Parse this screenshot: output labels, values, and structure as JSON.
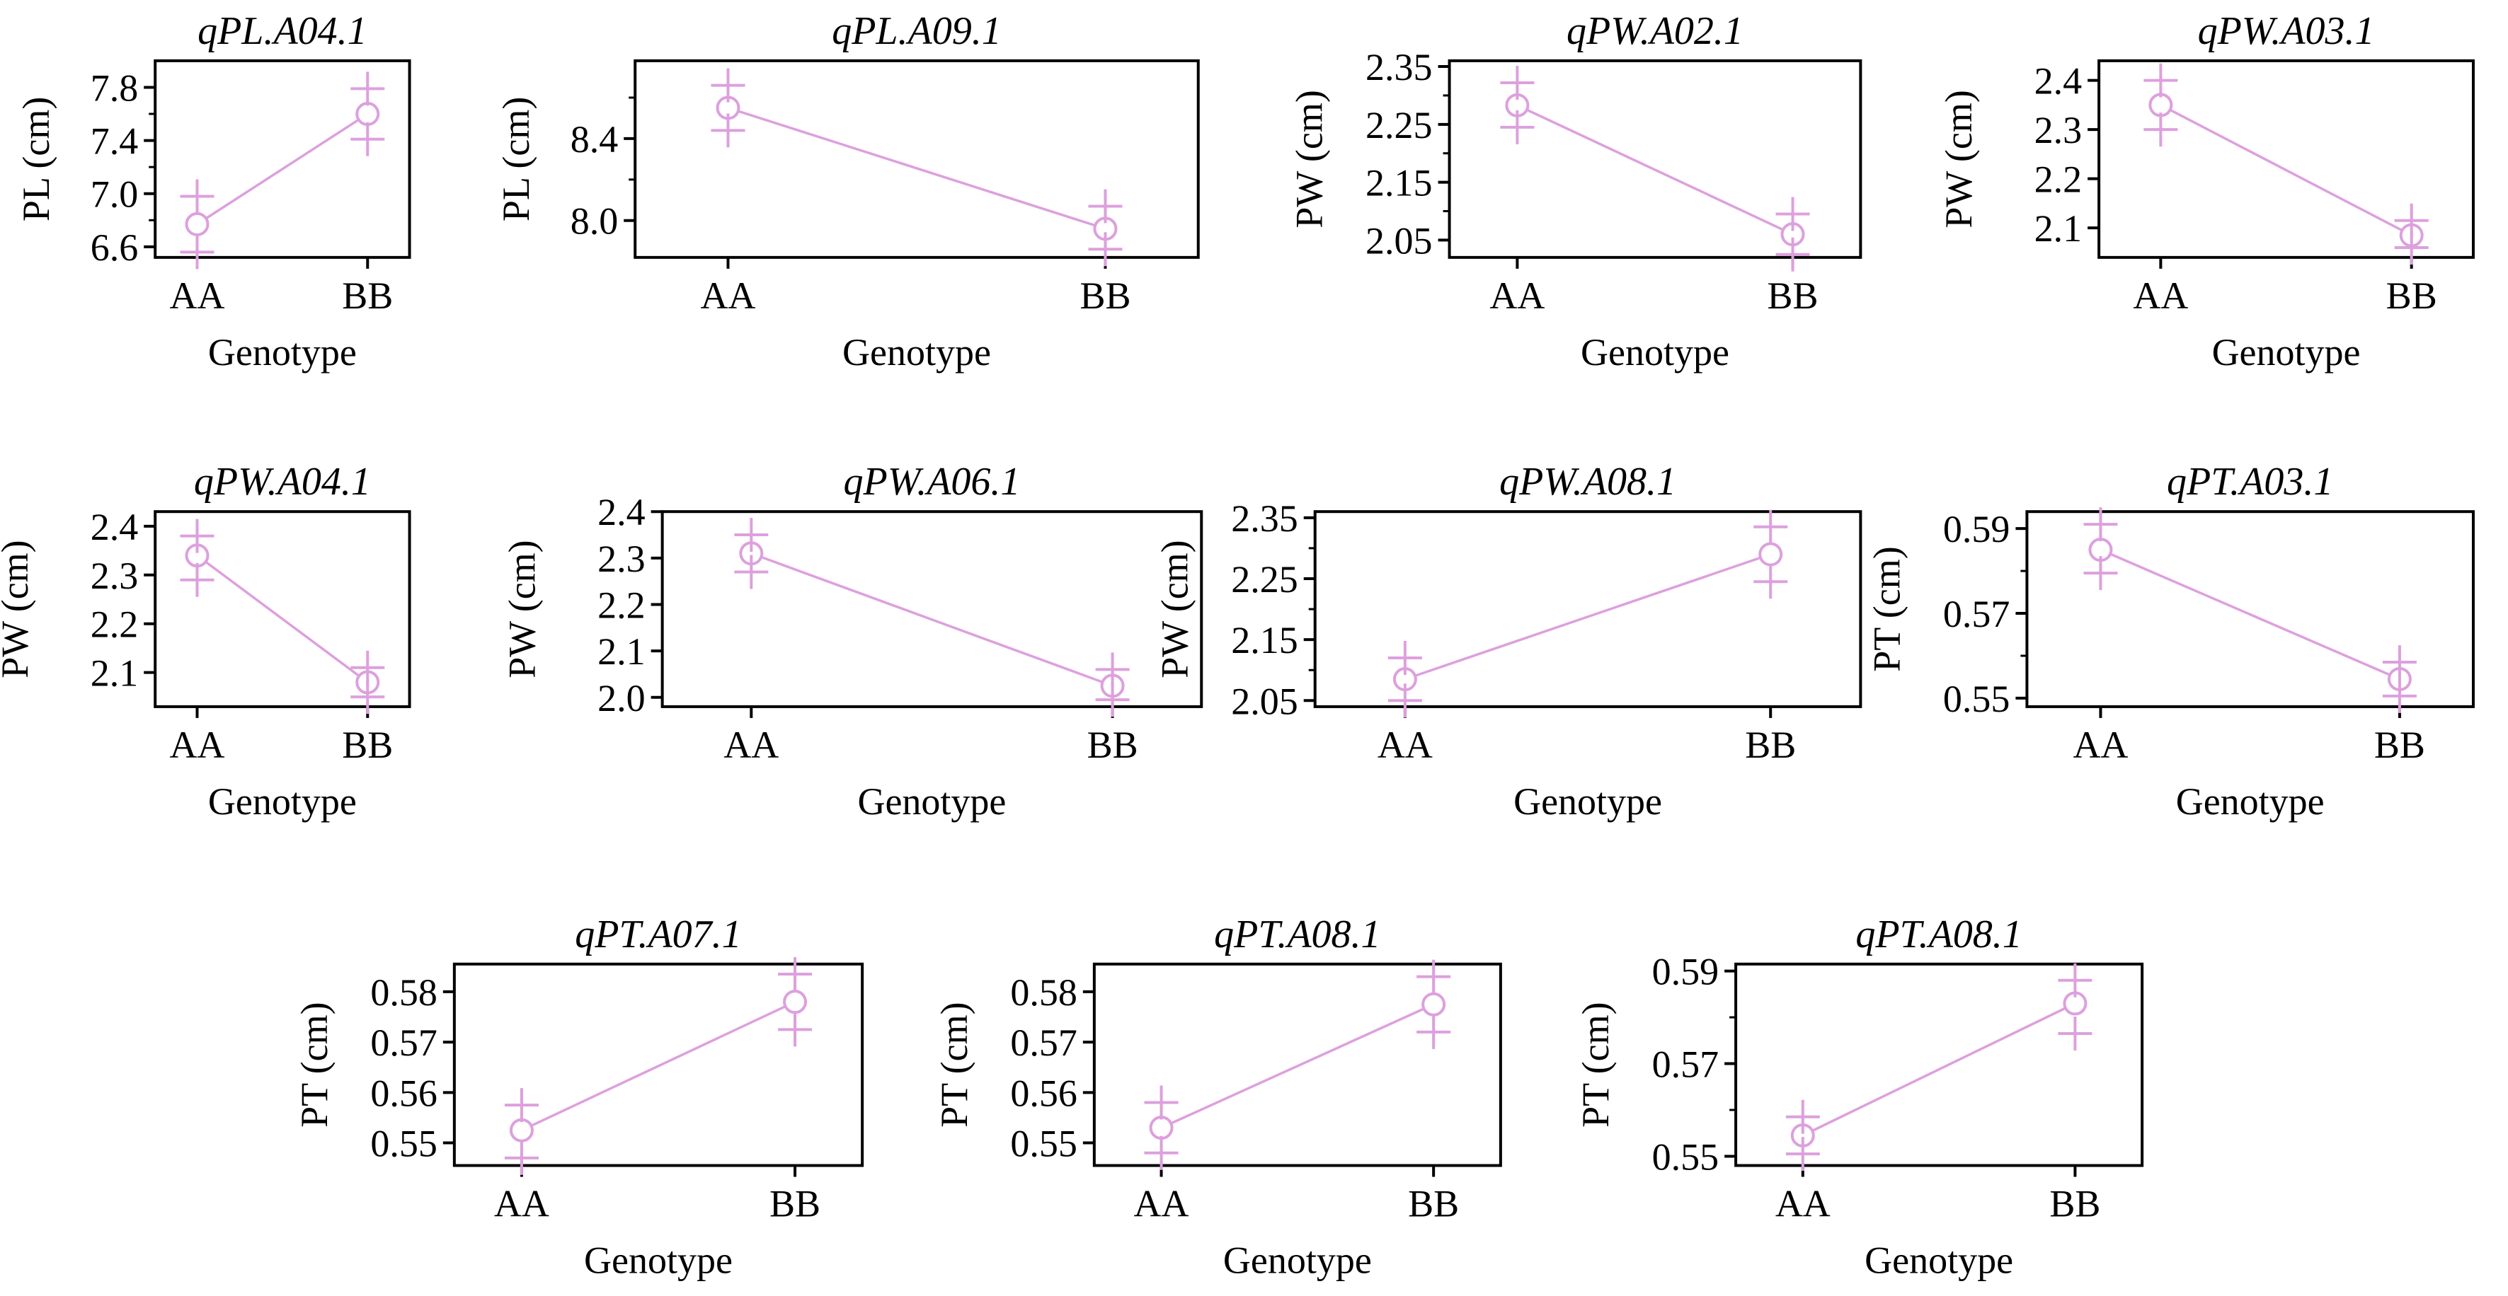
{
  "figure": {
    "accent_color": "#DDA0DD",
    "axis_color": "#000000"
  },
  "chart_data": [
    {
      "type": "line",
      "title": "qPL.A04.1",
      "xlabel": "Genotype",
      "ylabel": "PL (cm)",
      "categories": [
        "AA",
        "BB"
      ],
      "values": [
        6.77,
        7.6
      ],
      "lower": [
        6.56,
        7.41
      ],
      "upper": [
        6.98,
        7.79
      ],
      "ylim": [
        6.52,
        8.0
      ],
      "yticks": [
        6.6,
        7.0,
        7.4,
        7.8
      ],
      "ytick_labels": [
        "6.6",
        "7.0",
        "7.4",
        "7.8"
      ],
      "minor_yticks": [
        6.8,
        7.2,
        7.6
      ]
    },
    {
      "type": "line",
      "title": "qPL.A09.1",
      "xlabel": "Genotype",
      "ylabel": "PL (cm)",
      "categories": [
        "AA",
        "BB"
      ],
      "values": [
        8.55,
        7.96
      ],
      "lower": [
        8.44,
        7.86
      ],
      "upper": [
        8.66,
        8.07
      ],
      "ylim": [
        7.82,
        8.78
      ],
      "yticks": [
        8.0,
        8.4
      ],
      "ytick_labels": [
        "8.0",
        "8.4"
      ],
      "minor_yticks": [
        8.2,
        8.6
      ]
    },
    {
      "type": "line",
      "title": "qPW.A02.1",
      "xlabel": "Genotype",
      "ylabel": "PW (cm)",
      "categories": [
        "AA",
        "BB"
      ],
      "values": [
        2.283,
        2.06
      ],
      "lower": [
        2.245,
        2.025
      ],
      "upper": [
        2.322,
        2.095
      ],
      "ylim": [
        2.02,
        2.36
      ],
      "yticks": [
        2.05,
        2.15,
        2.25,
        2.35
      ],
      "ytick_labels": [
        "2.05",
        "2.15",
        "2.25",
        "2.35"
      ],
      "minor_yticks": [
        2.1,
        2.2,
        2.3
      ]
    },
    {
      "type": "line",
      "title": "qPW.A03.1",
      "xlabel": "Genotype",
      "ylabel": "PW (cm)",
      "categories": [
        "AA",
        "BB"
      ],
      "values": [
        2.35,
        2.085
      ],
      "lower": [
        2.3,
        2.06
      ],
      "upper": [
        2.4,
        2.115
      ],
      "ylim": [
        2.04,
        2.44
      ],
      "yticks": [
        2.1,
        2.2,
        2.3,
        2.4
      ],
      "ytick_labels": [
        "2.1",
        "2.2",
        "2.3",
        "2.4"
      ],
      "minor_yticks": []
    },
    {
      "type": "line",
      "title": "qPW.A04.1",
      "xlabel": "Genotype",
      "ylabel": "PW (cm)",
      "categories": [
        "AA",
        "BB"
      ],
      "values": [
        2.34,
        2.08
      ],
      "lower": [
        2.29,
        2.05
      ],
      "upper": [
        2.38,
        2.11
      ],
      "ylim": [
        2.03,
        2.43
      ],
      "yticks": [
        2.1,
        2.2,
        2.3,
        2.4
      ],
      "ytick_labels": [
        "2.1",
        "2.2",
        "2.3",
        "2.4"
      ],
      "minor_yticks": []
    },
    {
      "type": "line",
      "title": "qPW.A06.1",
      "xlabel": "Genotype",
      "ylabel": "PW (cm)",
      "categories": [
        "AA",
        "BB"
      ],
      "values": [
        2.31,
        2.025
      ],
      "lower": [
        2.27,
        1.995
      ],
      "upper": [
        2.35,
        2.06
      ],
      "ylim": [
        1.98,
        2.4
      ],
      "yticks": [
        2.0,
        2.1,
        2.2,
        2.3,
        2.4
      ],
      "ytick_labels": [
        "2.0",
        "2.1",
        "2.2",
        "2.3",
        "2.4"
      ],
      "minor_yticks": []
    },
    {
      "type": "line",
      "title": "qPW.A08.1",
      "xlabel": "Genotype",
      "ylabel": "PW (cm)",
      "categories": [
        "AA",
        "BB"
      ],
      "values": [
        2.085,
        2.29
      ],
      "lower": [
        2.05,
        2.245
      ],
      "upper": [
        2.12,
        2.335
      ],
      "ylim": [
        2.04,
        2.36
      ],
      "yticks": [
        2.05,
        2.15,
        2.25,
        2.35
      ],
      "ytick_labels": [
        "2.05",
        "2.15",
        "2.25",
        "2.35"
      ],
      "minor_yticks": [
        2.1,
        2.2,
        2.3
      ]
    },
    {
      "type": "line",
      "title": "qPT.A03.1",
      "xlabel": "Genotype",
      "ylabel": "PT (cm)",
      "categories": [
        "AA",
        "BB"
      ],
      "values": [
        0.585,
        0.5545
      ],
      "lower": [
        0.5795,
        0.5505
      ],
      "upper": [
        0.591,
        0.5585
      ],
      "ylim": [
        0.548,
        0.594
      ],
      "yticks": [
        0.55,
        0.57,
        0.59
      ],
      "ytick_labels": [
        "0.55",
        "0.57",
        "0.59"
      ],
      "minor_yticks": [
        0.56,
        0.58
      ]
    },
    {
      "type": "line",
      "title": "qPT.A07.1",
      "xlabel": "Genotype",
      "ylabel": "PT (cm)",
      "categories": [
        "AA",
        "BB"
      ],
      "values": [
        0.5525,
        0.578
      ],
      "lower": [
        0.547,
        0.5725
      ],
      "upper": [
        0.5575,
        0.5835
      ],
      "ylim": [
        0.5455,
        0.5855
      ],
      "yticks": [
        0.55,
        0.56,
        0.57,
        0.58
      ],
      "ytick_labels": [
        "0.55",
        "0.56",
        "0.57",
        "0.58"
      ],
      "minor_yticks": []
    },
    {
      "type": "line",
      "title": "qPT.A08.1",
      "xlabel": "Genotype",
      "ylabel": "PT (cm)",
      "categories": [
        "AA",
        "BB"
      ],
      "values": [
        0.553,
        0.5775
      ],
      "lower": [
        0.548,
        0.572
      ],
      "upper": [
        0.558,
        0.583
      ],
      "ylim": [
        0.5455,
        0.5855
      ],
      "yticks": [
        0.55,
        0.56,
        0.57,
        0.58
      ],
      "ytick_labels": [
        "0.55",
        "0.56",
        "0.57",
        "0.58"
      ],
      "minor_yticks": []
    },
    {
      "type": "line",
      "title": "qPT.A08.1",
      "xlabel": "Genotype",
      "ylabel": "PT (cm)",
      "categories": [
        "AA",
        "BB"
      ],
      "values": [
        0.5545,
        0.583
      ],
      "lower": [
        0.5505,
        0.5765
      ],
      "upper": [
        0.5585,
        0.588
      ],
      "ylim": [
        0.548,
        0.5915
      ],
      "yticks": [
        0.55,
        0.57,
        0.59
      ],
      "ytick_labels": [
        "0.55",
        "0.57",
        "0.59"
      ],
      "minor_yticks": [
        0.56,
        0.58
      ]
    }
  ]
}
